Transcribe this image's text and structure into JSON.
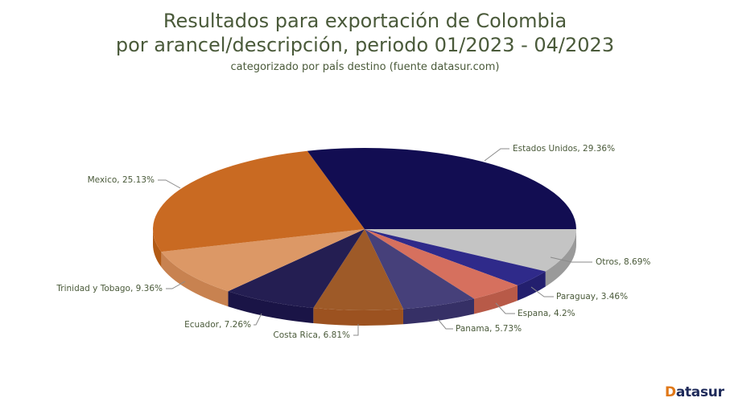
{
  "chart_data": {
    "type": "pie",
    "title": "Resultados para exportación de Colombia por arancel/descripción, periodo 01/2023 - 04/2023",
    "title_lines": [
      "Resultados para exportación de Colombia",
      "por arancel/descripción, periodo 01/2023 - 04/2023"
    ],
    "subtitle": "categorizado por paÍs destino (fuente datasur.com)",
    "style": "3d",
    "start_angle_deg": 0,
    "direction": "clockwise",
    "slices": [
      {
        "label": "Otros",
        "value": 8.69,
        "display": "Otros, 8.69%",
        "color": "#c4c4c4",
        "side": "#9a9a9a"
      },
      {
        "label": "Paraguay",
        "value": 3.46,
        "display": "Paraguay, 3.46%",
        "color": "#2f2a8a",
        "side": "#231f6e"
      },
      {
        "label": "Espana",
        "value": 4.2,
        "display": "Espana, 4.2%",
        "color": "#d6705e",
        "side": "#b85a48"
      },
      {
        "label": "Panama",
        "value": 5.73,
        "display": "Panama, 5.73%",
        "color": "#46407a",
        "side": "#363066"
      },
      {
        "label": "Costa Rica",
        "value": 6.81,
        "display": "Costa Rica, 6.81%",
        "color": "#9e5a28",
        "side": "#9c5220"
      },
      {
        "label": "Ecuador",
        "value": 7.26,
        "display": "Ecuador, 7.26%",
        "color": "#241e52",
        "side": "#1a1446"
      },
      {
        "label": "Trinidad y Tobago",
        "value": 9.36,
        "display": "Trinidad y Tobago, 9.36%",
        "color": "#dc9866",
        "side": "#c88250"
      },
      {
        "label": "Mexico",
        "value": 25.13,
        "display": "Mexico, 25.13%",
        "color": "#c96a22",
        "side": "#b25a14"
      },
      {
        "label": "Estados Unidos",
        "value": 29.36,
        "display": "Estados Unidos, 29.36%",
        "color": "#120d52",
        "side": "#0c0840"
      }
    ]
  },
  "footer": {
    "logo_first": "D",
    "logo_rest": "atasur"
  }
}
